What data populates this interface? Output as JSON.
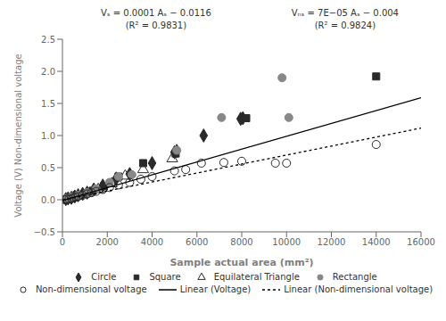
{
  "chart_data": {
    "type": "scatter",
    "xlabel": "Sample actual area (mm²)",
    "ylabel": "Voltage (V) Non-dimensional voltage",
    "xlim": [
      0,
      16000
    ],
    "ylim": [
      -0.5,
      2.5
    ],
    "xticks": [
      0,
      2000,
      4000,
      6000,
      8000,
      10000,
      12000,
      14000,
      16000
    ],
    "yticks": [
      {
        "value": -0.5,
        "label": "−0.5"
      },
      {
        "value": 0,
        "label": "0.0"
      },
      0.5,
      {
        "value": 1,
        "label": "1.0"
      },
      1.5,
      {
        "value": 2,
        "label": "2.0"
      },
      2.5
    ],
    "grid": false,
    "legend": "bottom",
    "annotations": [
      "Vₛ = 0.0001 Aₛ − 0.0116",
      "(R² = 0.9831)",
      "Vₙₛ = 7E−05 Aₛ − 0.004",
      "(R² = 0.9824)"
    ],
    "series": [
      {
        "name": "Circle",
        "color": "#2a2a2a",
        "marker": "diamond",
        "x": [
          150,
          250,
          400,
          550,
          700,
          900,
          1100,
          1400,
          1800,
          2400,
          3000,
          4000,
          5000,
          5100,
          6300,
          7950,
          8050
        ],
        "values": [
          0.01,
          0.02,
          0.03,
          0.05,
          0.07,
          0.09,
          0.11,
          0.16,
          0.22,
          0.33,
          0.4,
          0.57,
          0.74,
          0.76,
          1.0,
          1.26,
          1.27
        ]
      },
      {
        "name": "Square",
        "color": "#2a2a2a",
        "marker": "square",
        "x": [
          200,
          400,
          700,
          1050,
          1350,
          1850,
          2500,
          3600,
          5050,
          8200,
          14000
        ],
        "values": [
          0.01,
          0.04,
          0.07,
          0.1,
          0.14,
          0.21,
          0.36,
          0.57,
          0.72,
          1.27,
          1.92
        ]
      },
      {
        "name": "Equilateral Triangle",
        "color": "#2a2a2a",
        "marker": "open triangle",
        "x": [
          250,
          500,
          700,
          1100,
          1600,
          2200,
          2800,
          3600,
          4900
        ],
        "values": [
          0.01,
          0.04,
          0.06,
          0.1,
          0.16,
          0.25,
          0.37,
          0.47,
          0.64
        ]
      },
      {
        "name": "Rectangle",
        "color": "#888888",
        "marker": "circle",
        "x": [
          200,
          400,
          700,
          1100,
          1500,
          2100,
          2500,
          3100,
          5100,
          7100,
          9800,
          10100
        ],
        "values": [
          0.02,
          0.04,
          0.07,
          0.11,
          0.17,
          0.27,
          0.36,
          0.39,
          0.77,
          1.28,
          1.9,
          1.28
        ]
      },
      {
        "name": "Non-dimensional voltage",
        "color": "#2a2a2a",
        "marker": "open circle",
        "x": [
          100,
          200,
          300,
          400,
          500,
          600,
          700,
          900,
          1100,
          1300,
          1500,
          1800,
          2100,
          2500,
          3000,
          3500,
          4000,
          5000,
          5500,
          6200,
          7200,
          8000,
          9500,
          10000,
          14000
        ],
        "values": [
          0.0,
          0.01,
          0.01,
          0.02,
          0.03,
          0.04,
          0.05,
          0.07,
          0.09,
          0.11,
          0.13,
          0.16,
          0.19,
          0.23,
          0.27,
          0.32,
          0.36,
          0.45,
          0.47,
          0.57,
          0.58,
          0.6,
          0.57,
          0.57,
          0.86
        ]
      },
      {
        "name": "Linear (Voltage)",
        "type": "line",
        "color": "#000000",
        "line_style": "solid",
        "x": [
          0,
          16000
        ],
        "values": [
          -0.0116,
          1.5884
        ]
      },
      {
        "name": "Linear (Non-dimensional voltage)",
        "type": "line",
        "color": "#000000",
        "line_style": "dotted",
        "x": [
          0,
          16000
        ],
        "values": [
          -0.004,
          1.116
        ]
      }
    ]
  }
}
